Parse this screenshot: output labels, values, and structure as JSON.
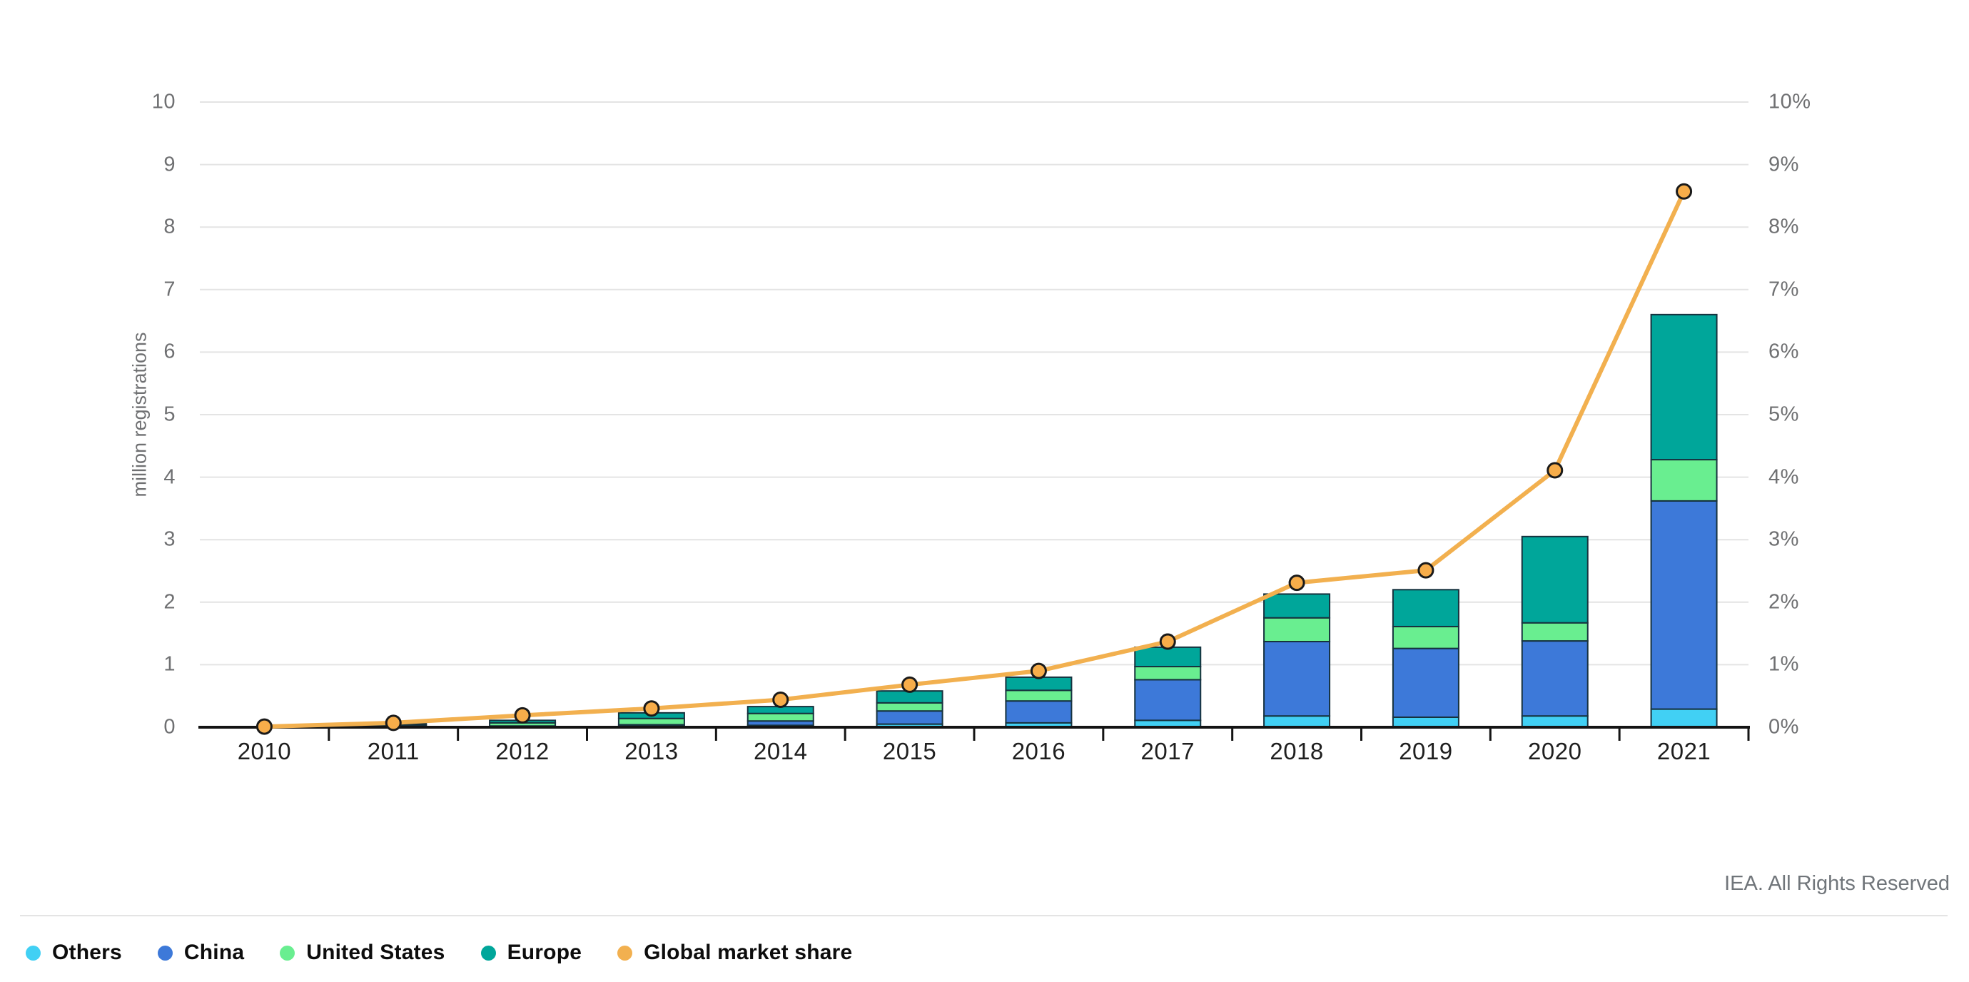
{
  "chart_data": {
    "type": "bar",
    "subtype": "stacked-bar-with-line",
    "title": "",
    "categories": [
      "2010",
      "2011",
      "2012",
      "2013",
      "2014",
      "2015",
      "2016",
      "2017",
      "2018",
      "2019",
      "2020",
      "2021"
    ],
    "series": [
      {
        "name": "Others",
        "color": "#41d0f4",
        "values": [
          0.0,
          0.01,
          0.01,
          0.02,
          0.03,
          0.05,
          0.07,
          0.11,
          0.18,
          0.16,
          0.18,
          0.29
        ]
      },
      {
        "name": "China",
        "color": "#3d79d9",
        "values": [
          0.0,
          0.01,
          0.01,
          0.02,
          0.07,
          0.21,
          0.35,
          0.65,
          1.19,
          1.1,
          1.2,
          3.33
        ]
      },
      {
        "name": "United States",
        "color": "#69ee90",
        "values": [
          0.0,
          0.02,
          0.05,
          0.1,
          0.12,
          0.13,
          0.17,
          0.21,
          0.38,
          0.35,
          0.29,
          0.66
        ]
      },
      {
        "name": "Europe",
        "color": "#00a69a",
        "values": [
          0.01,
          0.02,
          0.04,
          0.09,
          0.11,
          0.19,
          0.21,
          0.31,
          0.38,
          0.59,
          1.38,
          2.32
        ]
      }
    ],
    "line_series": {
      "name": "Global market share",
      "color": "#f2b04f",
      "marker_fill": "#f7ad4a",
      "marker_stroke": "#1a1a1a",
      "axis": "right",
      "values_percent": [
        0.01,
        0.07,
        0.19,
        0.3,
        0.44,
        0.68,
        0.9,
        1.37,
        2.31,
        2.51,
        4.11,
        8.57
      ]
    },
    "left_axis": {
      "label": "million registrations",
      "min": 0,
      "max": 10,
      "step": 1,
      "ticks": [
        "0",
        "1",
        "2",
        "3",
        "4",
        "5",
        "6",
        "7",
        "8",
        "9",
        "10"
      ]
    },
    "right_axis": {
      "label": "",
      "min": 0,
      "max": 10,
      "step": 1,
      "ticks": [
        "0%",
        "1%",
        "2%",
        "3%",
        "4%",
        "5%",
        "6%",
        "7%",
        "8%",
        "9%",
        "10%"
      ]
    },
    "grid": true,
    "legend_position": "bottom"
  },
  "legend": {
    "items": [
      {
        "label": "Others",
        "color": "#41d0f4"
      },
      {
        "label": "China",
        "color": "#3d79d9"
      },
      {
        "label": "United States",
        "color": "#69ee90"
      },
      {
        "label": "Europe",
        "color": "#00a69a"
      },
      {
        "label": "Global market share",
        "color": "#f2b04f"
      }
    ]
  },
  "footer": {
    "attribution": "IEA. All Rights Reserved"
  },
  "colors": {
    "grid": "#e4e4e4",
    "axis_line": "#141414",
    "bar_border": "#16323e",
    "tick_text": "#6f7072",
    "x_label_text": "#1f1f1f"
  }
}
